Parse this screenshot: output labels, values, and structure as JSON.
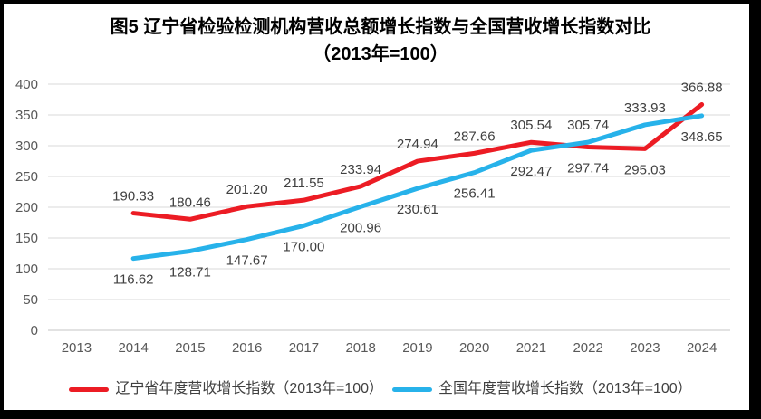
{
  "title": {
    "line1": "图5  辽宁省检验检测机构营收总额增长指数与全国营收增长指数对比",
    "line2": "（2013年=100）"
  },
  "chart_data": {
    "type": "line",
    "categories": [
      "2013",
      "2014",
      "2015",
      "2016",
      "2017",
      "2018",
      "2019",
      "2020",
      "2021",
      "2022",
      "2023",
      "2024"
    ],
    "series": [
      {
        "name": "辽宁省年度营收增长指数（2013年=100）",
        "color": "#ec1c24",
        "values": [
          null,
          190.33,
          180.46,
          201.2,
          211.55,
          233.94,
          274.94,
          287.66,
          305.54,
          297.74,
          295.03,
          366.88
        ],
        "label_positions": [
          null,
          "above",
          "above",
          "above",
          "above",
          "above",
          "above",
          "above",
          "above",
          "below",
          "below",
          "above"
        ]
      },
      {
        "name": "全国年度营收增长指数（2013年=100）",
        "color": "#27b2ea",
        "values": [
          null,
          116.62,
          128.71,
          147.67,
          170.0,
          200.96,
          230.61,
          256.41,
          292.47,
          305.74,
          333.93,
          348.65
        ],
        "label_positions": [
          null,
          "below",
          "below",
          "below",
          "below",
          "below",
          "below",
          "below",
          "below",
          "above",
          "above",
          "below"
        ]
      }
    ],
    "title": "图5 辽宁省检验检测机构营收总额增长指数与全国营收增长指数对比（2013年=100）",
    "xlabel": "",
    "ylabel": "",
    "ylim": [
      0,
      400
    ],
    "ytick_step": 50,
    "grid": true,
    "legend_position": "bottom",
    "label_decimals": 2,
    "colors": {
      "gridline": "#d9d9d9",
      "baseline": "#c6c6c6",
      "axis_text": "#595959",
      "data_label_text": "#404040",
      "frame_border": "#000000"
    }
  }
}
